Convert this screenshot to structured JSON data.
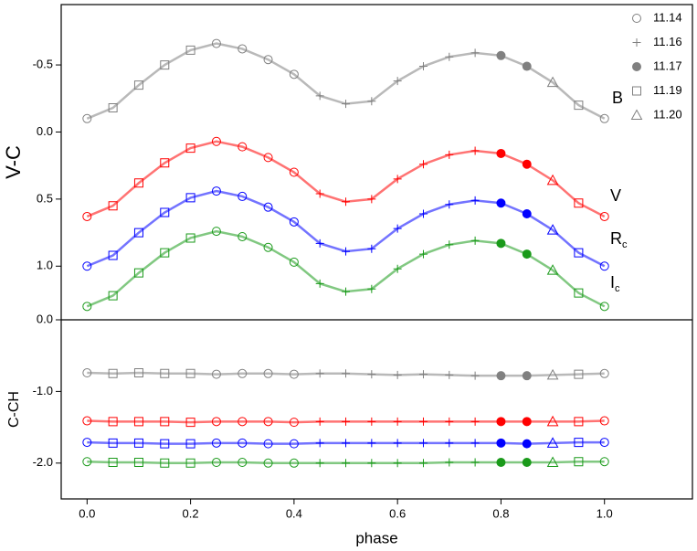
{
  "chart_data": [
    {
      "type": "scatter",
      "ylabel": "V-C",
      "reversed": true,
      "xlim": [
        -0.05,
        1.17
      ],
      "ylim": [
        -0.95,
        1.4
      ],
      "yticks": [
        -0.5,
        {
          "value": 0,
          "label": "0.0"
        },
        0.5,
        {
          "value": 1,
          "label": "1.0"
        }
      ],
      "x": [
        0,
        0.05,
        0.1,
        0.15,
        0.2,
        0.25,
        0.3,
        0.35,
        0.4,
        0.45,
        0.5,
        0.55,
        0.6,
        0.65,
        0.7,
        0.75,
        0.8,
        0.85,
        0.9,
        0.95,
        1.0
      ],
      "markers": [
        "circle",
        "square",
        "square",
        "square",
        "square",
        "circle",
        "circle",
        "circle",
        "circle",
        "plus",
        "plus",
        "plus",
        "plus",
        "plus",
        "plus",
        "plus",
        "filled",
        "filled",
        "triangle",
        "square",
        "circle"
      ],
      "legend_position": "upper right",
      "legend_color": "#808080",
      "legend": [
        {
          "name": "11.14",
          "marker": "circle"
        },
        {
          "name": "11.16",
          "marker": "plus"
        },
        {
          "name": "11.17",
          "marker": "filled"
        },
        {
          "name": "11.19",
          "marker": "square"
        },
        {
          "name": "11.20",
          "marker": "triangle"
        }
      ],
      "annotations": [
        {
          "text": "B"
        },
        {
          "text": "V"
        },
        {
          "text": "R",
          "sub": "c"
        },
        {
          "text": "I",
          "sub": "c"
        }
      ],
      "series": [
        {
          "color": "#808080",
          "values": [
            -0.1,
            -0.18,
            -0.35,
            -0.5,
            -0.61,
            -0.66,
            -0.62,
            -0.54,
            -0.43,
            -0.27,
            -0.21,
            -0.23,
            -0.38,
            -0.49,
            -0.56,
            -0.59,
            -0.57,
            -0.49,
            -0.37,
            -0.2,
            -0.1
          ]
        },
        {
          "color": "#ff0000",
          "values": [
            0.63,
            0.55,
            0.38,
            0.23,
            0.12,
            0.07,
            0.11,
            0.19,
            0.3,
            0.46,
            0.52,
            0.5,
            0.35,
            0.24,
            0.17,
            0.14,
            0.16,
            0.24,
            0.36,
            0.53,
            0.63
          ]
        },
        {
          "color": "#0000ff",
          "values": [
            1.0,
            0.92,
            0.75,
            0.6,
            0.49,
            0.44,
            0.48,
            0.56,
            0.67,
            0.83,
            0.89,
            0.87,
            0.72,
            0.61,
            0.54,
            0.51,
            0.53,
            0.61,
            0.73,
            0.9,
            1.0
          ]
        },
        {
          "color": "#1a9a1a",
          "values": [
            1.3,
            1.22,
            1.05,
            0.9,
            0.79,
            0.74,
            0.78,
            0.86,
            0.97,
            1.13,
            1.19,
            1.17,
            1.02,
            0.91,
            0.84,
            0.81,
            0.83,
            0.91,
            1.03,
            1.2,
            1.3
          ]
        }
      ]
    },
    {
      "type": "scatter",
      "ylabel": "C-CH",
      "xlabel": "phase",
      "xlim": [
        -0.05,
        1.17
      ],
      "ylim": [
        -2.5,
        0
      ],
      "xticks": [
        {
          "value": 0,
          "label": "0.0"
        },
        0.2,
        0.4,
        0.6,
        0.8,
        {
          "value": 1,
          "label": "1.0"
        }
      ],
      "yticks": [
        {
          "value": 0,
          "label": "0.0"
        },
        {
          "value": -1,
          "label": "-1.0"
        },
        {
          "value": -2,
          "label": "-2.0"
        }
      ],
      "x": [
        0,
        0.05,
        0.1,
        0.15,
        0.2,
        0.25,
        0.3,
        0.35,
        0.4,
        0.45,
        0.5,
        0.55,
        0.6,
        0.65,
        0.7,
        0.75,
        0.8,
        0.85,
        0.9,
        0.95,
        1.0
      ],
      "markers": [
        "circle",
        "square",
        "square",
        "square",
        "square",
        "circle",
        "circle",
        "circle",
        "circle",
        "plus",
        "plus",
        "plus",
        "plus",
        "plus",
        "plus",
        "plus",
        "filled",
        "filled",
        "triangle",
        "square",
        "circle"
      ],
      "series": [
        {
          "color": "#808080",
          "values": [
            -0.74,
            -0.75,
            -0.74,
            -0.75,
            -0.75,
            -0.76,
            -0.75,
            -0.75,
            -0.76,
            -0.75,
            -0.75,
            -0.76,
            -0.77,
            -0.76,
            -0.77,
            -0.78,
            -0.78,
            -0.78,
            -0.77,
            -0.76,
            -0.75
          ]
        },
        {
          "color": "#ff0000",
          "values": [
            -1.41,
            -1.42,
            -1.42,
            -1.42,
            -1.43,
            -1.42,
            -1.42,
            -1.42,
            -1.43,
            -1.42,
            -1.42,
            -1.42,
            -1.42,
            -1.42,
            -1.42,
            -1.42,
            -1.42,
            -1.42,
            -1.42,
            -1.42,
            -1.41
          ]
        },
        {
          "color": "#0000ff",
          "values": [
            -1.71,
            -1.72,
            -1.72,
            -1.73,
            -1.73,
            -1.72,
            -1.72,
            -1.73,
            -1.73,
            -1.72,
            -1.72,
            -1.72,
            -1.72,
            -1.72,
            -1.72,
            -1.72,
            -1.72,
            -1.73,
            -1.72,
            -1.71,
            -1.71
          ]
        },
        {
          "color": "#1a9a1a",
          "values": [
            -1.98,
            -1.99,
            -1.99,
            -2.0,
            -2.0,
            -1.99,
            -1.99,
            -2.0,
            -2.0,
            -2.0,
            -2.0,
            -2.0,
            -2.0,
            -2.0,
            -1.99,
            -1.99,
            -1.99,
            -1.99,
            -1.99,
            -1.98,
            -1.98
          ]
        }
      ]
    }
  ]
}
